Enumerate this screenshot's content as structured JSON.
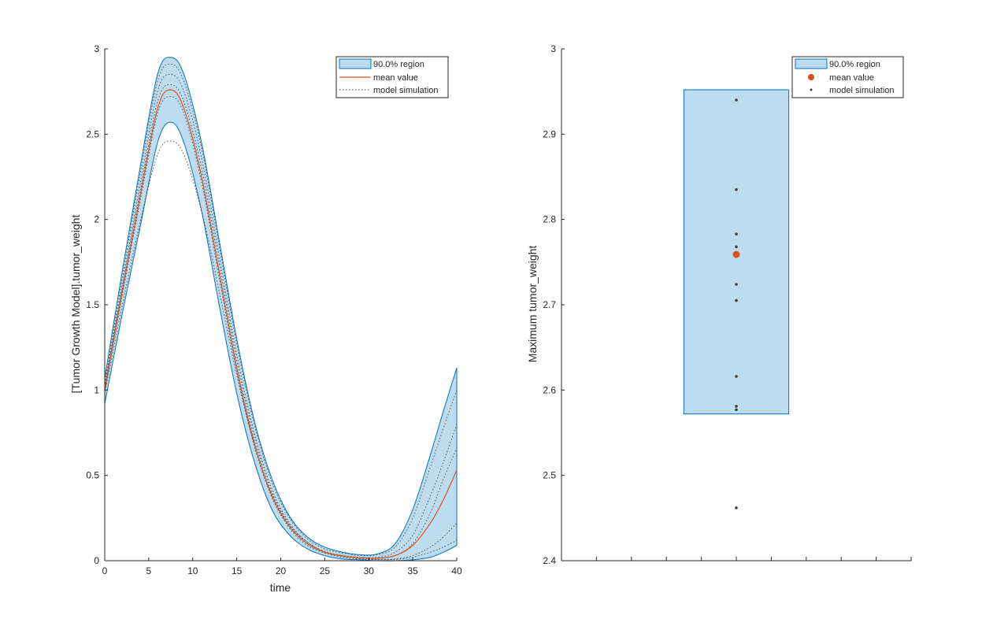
{
  "colors": {
    "band_fill": "#bedcef",
    "band_edge": "#0072bd",
    "mean": "#d95319",
    "sim": "#404040",
    "axis": "#262626"
  },
  "chart_data": [
    {
      "type": "area",
      "xlabel": "time",
      "ylabel": "[Tumor Growth Model].tumor_weight",
      "xlim": [
        0,
        40
      ],
      "ylim": [
        0,
        3
      ],
      "x_ticks": [
        "0",
        "5",
        "10",
        "15",
        "20",
        "25",
        "30",
        "35",
        "40"
      ],
      "y_ticks": [
        "0",
        "0.5",
        "1",
        "1.5",
        "2",
        "2.5",
        "3"
      ],
      "legend": {
        "placement": "top-right",
        "entries": [
          "90.0% region",
          "mean value",
          "model simulation"
        ]
      },
      "x": [
        0,
        2,
        4,
        6,
        7.5,
        9,
        11,
        13,
        15,
        17,
        19,
        21,
        23,
        25,
        27,
        29,
        31,
        33,
        35,
        37,
        38.5,
        40
      ],
      "series": [
        {
          "name": "90.0% region (upper)",
          "values": [
            1.07,
            1.7,
            2.3,
            2.85,
            2.95,
            2.85,
            2.45,
            1.88,
            1.3,
            0.82,
            0.48,
            0.26,
            0.14,
            0.08,
            0.05,
            0.035,
            0.04,
            0.1,
            0.3,
            0.62,
            0.88,
            1.13
          ]
        },
        {
          "name": "90.0% region (lower)",
          "values": [
            0.92,
            1.45,
            1.95,
            2.45,
            2.57,
            2.45,
            2.05,
            1.5,
            0.98,
            0.58,
            0.3,
            0.15,
            0.07,
            0.03,
            0.01,
            0.005,
            0.0,
            0.0,
            0.005,
            0.02,
            0.05,
            0.09
          ]
        },
        {
          "name": "mean value",
          "values": [
            1.0,
            1.58,
            2.13,
            2.65,
            2.76,
            2.65,
            2.25,
            1.69,
            1.13,
            0.69,
            0.38,
            0.2,
            0.1,
            0.05,
            0.028,
            0.018,
            0.015,
            0.03,
            0.09,
            0.22,
            0.36,
            0.53
          ]
        },
        {
          "name": "model simulation",
          "values": [
            0.98,
            1.5,
            1.98,
            2.38,
            2.46,
            2.38,
            2.05,
            1.58,
            1.09,
            0.68,
            0.39,
            0.21,
            0.11,
            0.05,
            0.025,
            0.012,
            0.008,
            0.01,
            0.03,
            0.08,
            0.14,
            0.22
          ]
        },
        {
          "name": "model simulation",
          "values": [
            1.02,
            1.62,
            2.2,
            2.75,
            2.85,
            2.75,
            2.36,
            1.79,
            1.21,
            0.75,
            0.42,
            0.22,
            0.11,
            0.055,
            0.03,
            0.018,
            0.015,
            0.03,
            0.1,
            0.28,
            0.48,
            0.66
          ]
        },
        {
          "name": "model simulation",
          "values": [
            1.04,
            1.66,
            2.26,
            2.81,
            2.91,
            2.81,
            2.42,
            1.85,
            1.27,
            0.8,
            0.46,
            0.25,
            0.13,
            0.07,
            0.045,
            0.03,
            0.035,
            0.08,
            0.25,
            0.55,
            0.78,
            1.0
          ]
        },
        {
          "name": "model simulation",
          "values": [
            0.99,
            1.56,
            2.1,
            2.62,
            2.72,
            2.62,
            2.22,
            1.66,
            1.11,
            0.67,
            0.37,
            0.19,
            0.09,
            0.045,
            0.02,
            0.01,
            0.006,
            0.008,
            0.02,
            0.05,
            0.08,
            0.12
          ]
        },
        {
          "name": "model simulation",
          "values": [
            1.01,
            1.6,
            2.16,
            2.69,
            2.79,
            2.69,
            2.3,
            1.74,
            1.17,
            0.72,
            0.4,
            0.21,
            0.1,
            0.05,
            0.03,
            0.02,
            0.02,
            0.05,
            0.15,
            0.38,
            0.58,
            0.8
          ]
        }
      ]
    },
    {
      "type": "scatter",
      "ylabel": "Maximum tumor_weight",
      "ylim": [
        2.4,
        3.0
      ],
      "y_ticks": [
        "2.4",
        "2.5",
        "2.6",
        "2.7",
        "2.8",
        "2.9",
        "3"
      ],
      "x_tick_count": 11,
      "legend": {
        "placement": "top-right",
        "entries": [
          "90.0% region",
          "mean value",
          "model simulation"
        ]
      },
      "region": [
        2.572,
        2.952
      ],
      "mean": 2.759,
      "simulations": [
        2.94,
        2.835,
        2.783,
        2.768,
        2.724,
        2.705,
        2.616,
        2.581,
        2.577,
        2.462
      ]
    }
  ]
}
